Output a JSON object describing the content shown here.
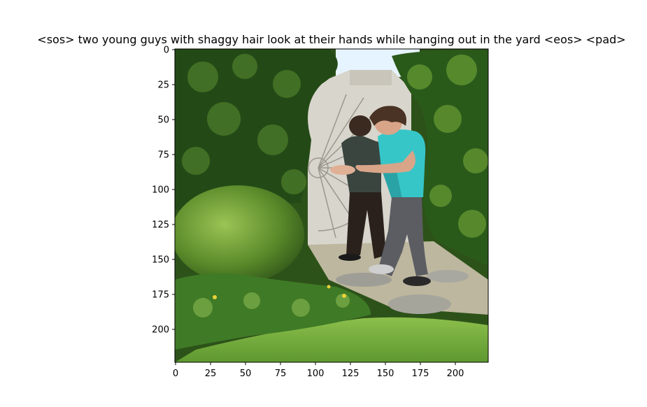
{
  "figure": {
    "title": "<sos> two young guys with shaggy hair look at their hands while hanging out in the yard <eos> <pad>"
  },
  "chart_data": {
    "type": "image",
    "title": "<sos> two young guys with shaggy hair look at their hands while hanging out in the yard <eos> <pad>",
    "xlabel": "",
    "ylabel": "",
    "xlim": [
      0,
      224
    ],
    "ylim": [
      224,
      0
    ],
    "x_ticks": [
      0,
      25,
      50,
      75,
      100,
      125,
      150,
      175,
      200
    ],
    "y_ticks": [
      0,
      25,
      50,
      75,
      100,
      125,
      150,
      175,
      200
    ]
  },
  "colors": {
    "sky": "#e6f4ff",
    "foliage_dark": "#1d3a13",
    "foliage_mid": "#3e6b22",
    "foliage_light": "#7fa844",
    "lawn": "#76ac3c",
    "path_stone": "#a6a59c",
    "gate": "#d8d5cc",
    "shirt_teal": "#36c6c8",
    "shirt_dark": "#3a4540",
    "jeans": "#5b5d62",
    "hair": "#4a3324",
    "skin": "#d8a589"
  }
}
